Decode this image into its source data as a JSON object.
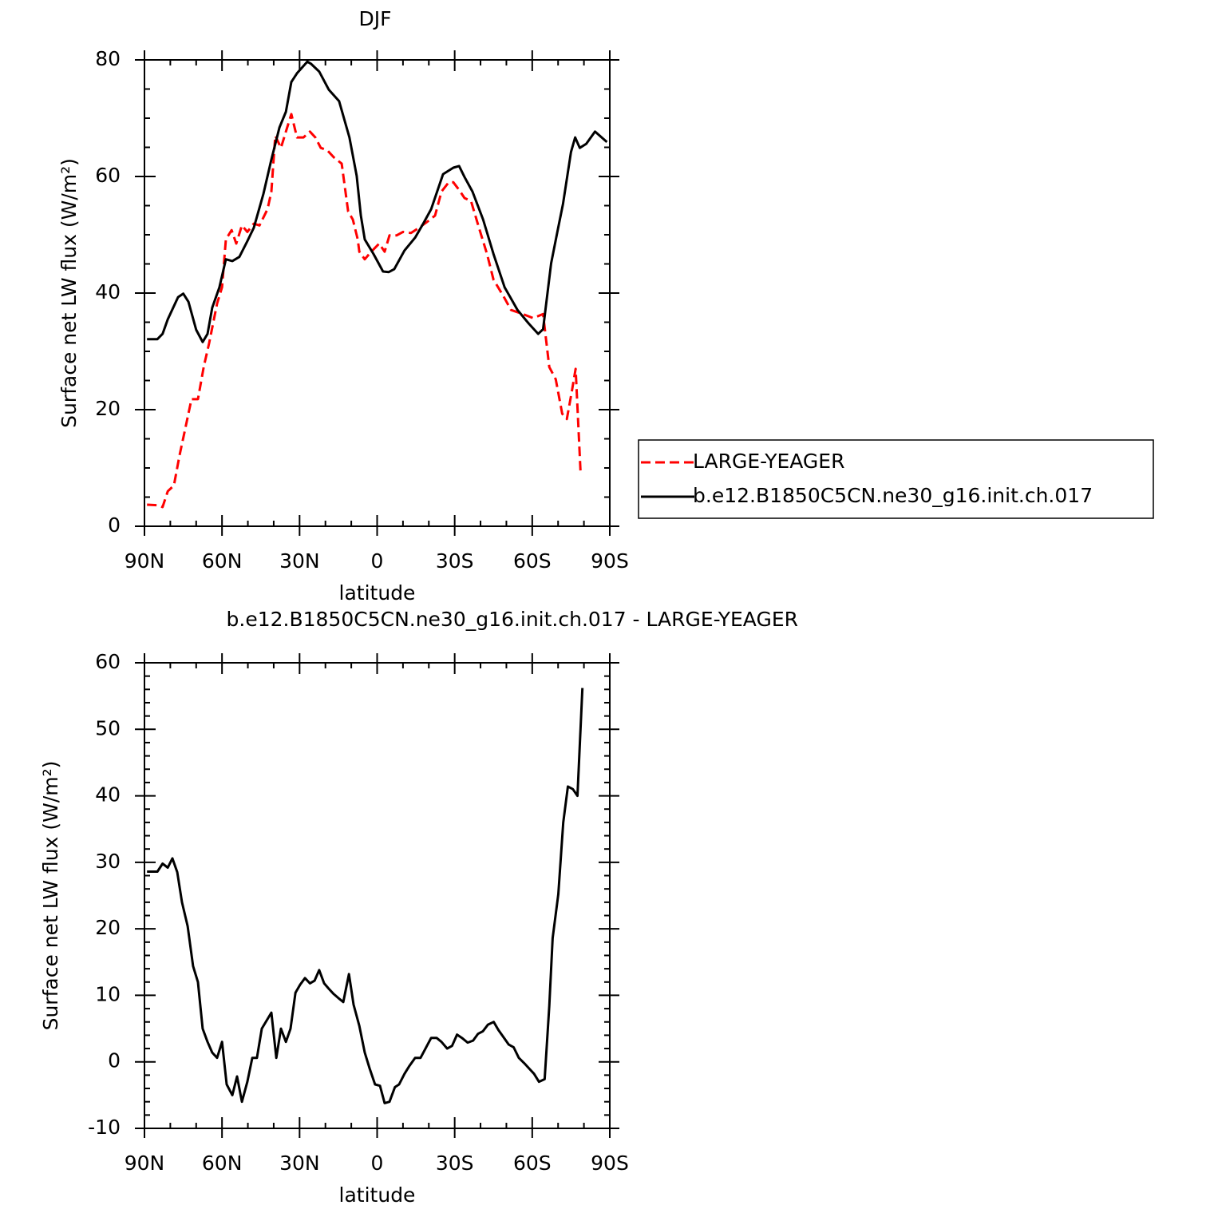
{
  "chart_data": [
    {
      "type": "line",
      "title": "DJF",
      "xlabel": "latitude",
      "ylabel": "Surface net LW flux (W/m²)",
      "xlim": [
        90,
        -90
      ],
      "xticks": [
        {
          "value": 90,
          "label": "90N"
        },
        {
          "value": 60,
          "label": "60N"
        },
        {
          "value": 30,
          "label": "30N"
        },
        0,
        {
          "value": -30,
          "label": "30S"
        },
        {
          "value": -60,
          "label": "60S"
        },
        {
          "value": -90,
          "label": "90S"
        }
      ],
      "ylim": [
        0,
        80
      ],
      "yticks": [
        0,
        20,
        40,
        60,
        80
      ],
      "legend": "right",
      "series": [
        {
          "name": "LARGE-YEAGER",
          "color": "#ff0000",
          "line_style": "dashed",
          "x": [
            89,
            85,
            83,
            81,
            78.6,
            76.4,
            74.3,
            71.8,
            69.3,
            67.1,
            65,
            61.9,
            60,
            58.5,
            56.3,
            54.5,
            52.3,
            50.2,
            47.7,
            45.5,
            42.4,
            40.9,
            39.4,
            37.2,
            35.3,
            33.2,
            31,
            28.5,
            26,
            23.9,
            21.8,
            19.3,
            16.8,
            13.7,
            11.2,
            9.4,
            7.5,
            6.9,
            4.8,
            2.3,
            -0.8,
            -2.9,
            -4.8,
            -7.6,
            -10,
            -13.1,
            -16.2,
            -19.3,
            -22.4,
            -24.9,
            -27.7,
            -29.5,
            -31.7,
            -33.8,
            -36.3,
            -39.4,
            -42.5,
            -45,
            -48.7,
            -51.8,
            -56.4,
            -60.4,
            -64.2,
            -66.6,
            -69.1,
            -71.6,
            -73.4,
            -75.3,
            -76.8,
            -78.7
          ],
          "values": [
            3.7,
            3.6,
            3.3,
            6,
            7,
            12.2,
            16.6,
            21.8,
            21.8,
            27.3,
            31.4,
            38.2,
            41,
            49.2,
            50.8,
            48.5,
            51.6,
            50.5,
            51.9,
            51.6,
            54.4,
            57.4,
            67,
            64.9,
            67.7,
            70.7,
            66.7,
            66.7,
            67.7,
            66.7,
            64.9,
            64.5,
            63.3,
            62.2,
            54,
            52.6,
            49.2,
            47.1,
            45.8,
            47.1,
            48.5,
            47.1,
            49.9,
            49.9,
            50.5,
            50.3,
            51.2,
            52.2,
            53.3,
            57.4,
            59,
            59,
            57.7,
            56.3,
            55.8,
            51.2,
            46.7,
            42.3,
            39.6,
            37.1,
            36.4,
            35.7,
            36.4,
            27.3,
            25.2,
            19.3,
            18.4,
            23.1,
            27,
            9.2
          ]
        },
        {
          "name": "b.e12.B1850C5CN.ne30_g16.init.ch.017",
          "color": "#000000",
          "line_style": "solid",
          "x": [
            89,
            85,
            83,
            81,
            77,
            75,
            73,
            70,
            67.5,
            65.6,
            63.8,
            61,
            58.5,
            56,
            53.3,
            50.2,
            47.7,
            44,
            40.9,
            37.8,
            35.3,
            33.2,
            31,
            27,
            25.5,
            22.4,
            18.7,
            14.7,
            10.7,
            7.9,
            6.3,
            4.8,
            1.4,
            -2.3,
            -4.5,
            -6.6,
            -10.6,
            -14.7,
            -17.8,
            -20.9,
            -25.5,
            -29.5,
            -31.7,
            -33.8,
            -36.9,
            -41,
            -45,
            -49.3,
            -54.3,
            -58.6,
            -62.3,
            -64.2,
            -67.3,
            -69.7,
            -71.9,
            -75,
            -76.6,
            -78.4,
            -80.9,
            -84.3,
            -88.9
          ],
          "values": [
            32.1,
            32.1,
            33,
            35.5,
            39.3,
            39.9,
            38.5,
            33.7,
            31.6,
            33,
            37.5,
            41,
            45.8,
            45.5,
            46.2,
            48.9,
            51.2,
            57,
            62.9,
            68.4,
            71.1,
            76.2,
            77.7,
            79.7,
            79.3,
            78,
            74.9,
            72.9,
            66.7,
            60.1,
            53.3,
            49.2,
            46.7,
            43.7,
            43.6,
            44.1,
            47.3,
            49.5,
            51.9,
            54.4,
            60.4,
            61.5,
            61.8,
            59.9,
            57.4,
            52.6,
            46.7,
            41,
            37.1,
            34.8,
            33,
            33.8,
            45.1,
            50.5,
            55.3,
            64.2,
            66.7,
            64.9,
            65.6,
            67.7,
            65.9
          ]
        }
      ]
    },
    {
      "type": "line",
      "title": "b.e12.B1850C5CN.ne30_g16.init.ch.017 - LARGE-YEAGER",
      "xlabel": "latitude",
      "ylabel": "Surface net LW flux (W/m²)",
      "xlim": [
        90,
        -90
      ],
      "xticks": [
        {
          "value": 90,
          "label": "90N"
        },
        {
          "value": 60,
          "label": "60N"
        },
        {
          "value": 30,
          "label": "30N"
        },
        0,
        {
          "value": -30,
          "label": "30S"
        },
        {
          "value": -60,
          "label": "60S"
        },
        {
          "value": -90,
          "label": "90S"
        }
      ],
      "ylim": [
        -10,
        60
      ],
      "yticks": [
        -10,
        0,
        10,
        20,
        30,
        40,
        50,
        60
      ],
      "series": [
        {
          "color": "#000000",
          "line_style": "solid",
          "x": [
            89,
            85,
            83,
            81,
            79.2,
            77.3,
            75.5,
            73.3,
            71.2,
            69.3,
            67.5,
            65.6,
            63.8,
            61.9,
            60,
            58.2,
            56,
            54.2,
            52.3,
            50.2,
            48.3,
            46.5,
            44.6,
            40.9,
            39,
            37.2,
            35.3,
            33.5,
            31.6,
            29.8,
            27.9,
            26,
            24.2,
            22.4,
            20.5,
            18.7,
            16.8,
            15,
            13.1,
            10.9,
            9.1,
            6.9,
            4.8,
            2.9,
            0.8,
            -1.1,
            -2.9,
            -4.8,
            -6.9,
            -8.5,
            -10.6,
            -12.5,
            -14.7,
            -16.8,
            -18.7,
            -20.9,
            -23,
            -24.9,
            -27.1,
            -29,
            -30.9,
            -32.8,
            -35,
            -37.1,
            -39,
            -40.9,
            -42.9,
            -45.1,
            -46.9,
            -49.1,
            -50.9,
            -52.8,
            -54.8,
            -56.9,
            -58.8,
            -60.7,
            -62.6,
            -64.8,
            -66.6,
            -67.9,
            -70.1,
            -72,
            -73.8,
            -75.7,
            -77.5,
            -79.4
          ],
          "values": [
            28.6,
            28.6,
            29.8,
            29.2,
            30.6,
            28.5,
            24,
            20.4,
            14.4,
            12,
            5,
            3,
            1.4,
            0.6,
            3,
            -3.4,
            -5,
            -2.2,
            -6,
            -3,
            0.6,
            0.6,
            5,
            7.4,
            0.6,
            5,
            3,
            5,
            10.4,
            11.6,
            12.6,
            11.8,
            12.2,
            13.8,
            11.8,
            11,
            10.2,
            9.6,
            9,
            13.2,
            8.6,
            5.4,
            1.4,
            -1,
            -3.4,
            -3.6,
            -6.2,
            -6,
            -3.8,
            -3.4,
            -1.8,
            -0.6,
            0.6,
            0.6,
            2,
            3.6,
            3.6,
            3,
            2,
            2.4,
            4.1,
            3.6,
            2.9,
            3.2,
            4.2,
            4.6,
            5.6,
            6,
            4.8,
            3.6,
            2.6,
            2.2,
            0.6,
            -0.2,
            -1,
            -1.8,
            -3,
            -2.6,
            8.4,
            18.6,
            25.2,
            36,
            41.4,
            41,
            40,
            56.2
          ]
        }
      ]
    }
  ]
}
